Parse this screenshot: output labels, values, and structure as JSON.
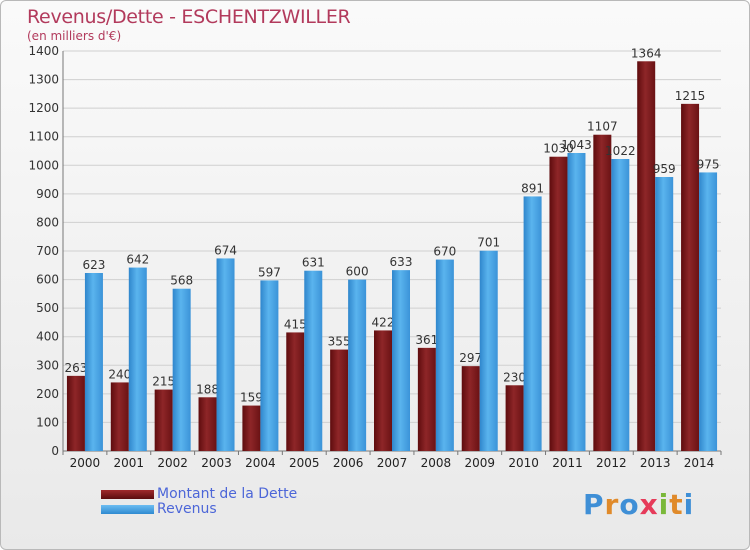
{
  "title": "Revenus/Dette - ESCHENTZWILLER",
  "subtitle": "(en milliers d'€)",
  "legend": {
    "debt_label": "Montant de la Dette",
    "revenue_label": "Revenus"
  },
  "logo": {
    "text": "Proxiti"
  },
  "colors": {
    "debt": "#7a1a1c",
    "revenue": "#4aa6e6",
    "title": "#b23a5c",
    "legend_text": "#4c66d8",
    "grid": "#d0d0d0"
  },
  "chart_data": {
    "type": "bar",
    "title": "Revenus/Dette - ESCHENTZWILLER",
    "subtitle": "(en milliers d'€)",
    "xlabel": "",
    "ylabel": "",
    "ylim": [
      0,
      1400
    ],
    "yticks": [
      0,
      100,
      200,
      300,
      400,
      500,
      600,
      700,
      800,
      900,
      1000,
      1100,
      1200,
      1300,
      1400
    ],
    "grid": true,
    "legend_position": "bottom-left",
    "categories": [
      "2000",
      "2001",
      "2002",
      "2003",
      "2004",
      "2005",
      "2006",
      "2007",
      "2008",
      "2009",
      "2010",
      "2011",
      "2012",
      "2013",
      "2014"
    ],
    "series": [
      {
        "name": "Montant de la Dette",
        "values": [
          263,
          240,
          215,
          188,
          159,
          415,
          355,
          422,
          361,
          297,
          230,
          1030,
          1107,
          1364,
          1215
        ]
      },
      {
        "name": "Revenus",
        "values": [
          623,
          642,
          568,
          674,
          597,
          631,
          600,
          633,
          670,
          701,
          891,
          1043,
          1022,
          959,
          975
        ]
      }
    ]
  }
}
